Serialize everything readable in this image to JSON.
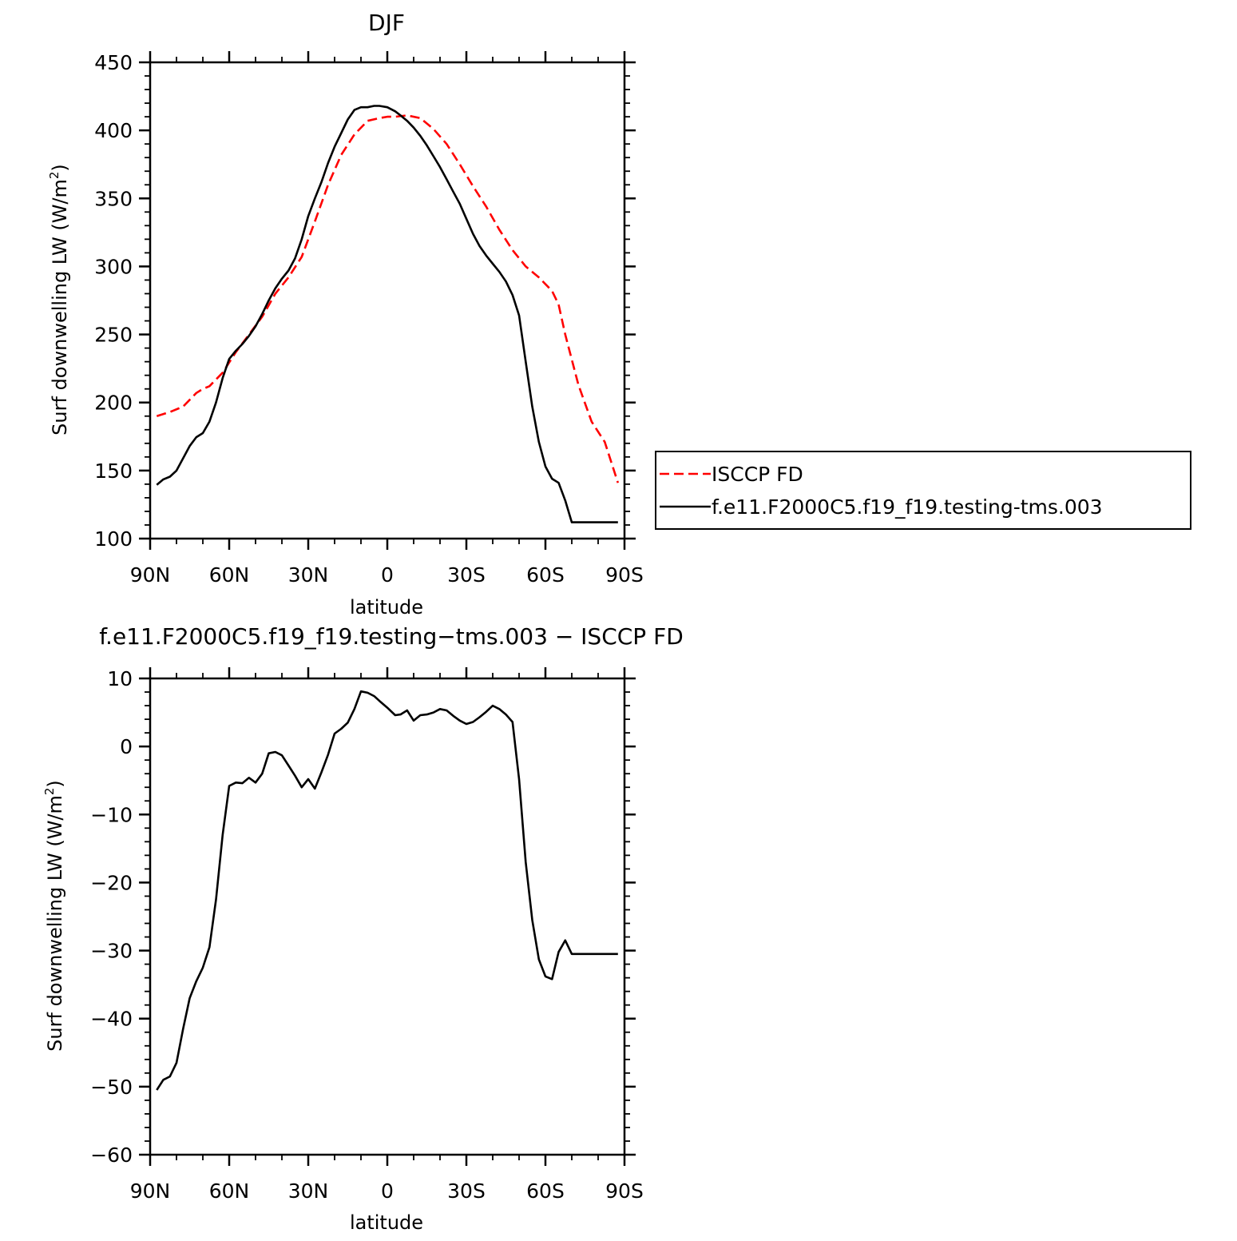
{
  "chart_data": [
    {
      "type": "line",
      "title": "DJF",
      "xlabel": "latitude",
      "ylabel_main": "Surf downwelling LW (W/m",
      "ylabel_sup": "2",
      "ylabel_close": ")",
      "xlim": [
        90,
        -90
      ],
      "ylim": [
        100,
        450
      ],
      "xticks": [
        {
          "value": 90,
          "label": "90N"
        },
        {
          "value": 60,
          "label": "60N"
        },
        {
          "value": 30,
          "label": "30N"
        },
        {
          "value": 0,
          "label": "0"
        },
        {
          "value": -30,
          "label": "30S"
        },
        {
          "value": -60,
          "label": "60S"
        },
        {
          "value": -90,
          "label": "90S"
        }
      ],
      "yticks": [
        100,
        150,
        200,
        250,
        300,
        350,
        400,
        450
      ],
      "legend": {
        "placement": "right"
      },
      "series": [
        {
          "name": "ISCCP FD",
          "color": "#ff0000",
          "dash": "dashed",
          "x": [
            87.5,
            82.5,
            77.5,
            72.5,
            70,
            67.5,
            62.5,
            57.5,
            52.5,
            47.5,
            42.5,
            37.5,
            32.5,
            27.5,
            22.5,
            17.5,
            12.5,
            7.5,
            3,
            0,
            -3,
            -7.5,
            -12.5,
            -17.5,
            -22.5,
            -27.5,
            -32.5,
            -37.5,
            -42.5,
            -47.5,
            -52.5,
            -57.5,
            -62.5,
            -65,
            -67.5,
            -72.5,
            -77.5,
            -82.5,
            -87.5
          ],
          "y": [
            190,
            193,
            197,
            207,
            210,
            212,
            222,
            237,
            250,
            263,
            280,
            292,
            307,
            333,
            360,
            382,
            397,
            407,
            409,
            410,
            410,
            411,
            409,
            401,
            390,
            375,
            359,
            344,
            327,
            312,
            300,
            292,
            282,
            272,
            250,
            213,
            186,
            171,
            141
          ]
        },
        {
          "name": "f.e11.F2000C5.f19_f19.testing-tms.003",
          "color": "#000000",
          "dash": "solid",
          "x": [
            87.5,
            85,
            82.5,
            80,
            77.5,
            75,
            72.5,
            70,
            67.5,
            65,
            62.5,
            60,
            57.5,
            55,
            52.5,
            50,
            47.5,
            45,
            42.5,
            40,
            37.5,
            35,
            32.5,
            30,
            27.5,
            25,
            22.5,
            20,
            17.5,
            15,
            12.5,
            10,
            7.5,
            5,
            3,
            0,
            -3,
            -5,
            -7.5,
            -10,
            -12.5,
            -15,
            -17.5,
            -20,
            -22.5,
            -25,
            -27.5,
            -30,
            -32.5,
            -35,
            -37.5,
            -40,
            -42.5,
            -45,
            -47.5,
            -50,
            -52.5,
            -55,
            -57.5,
            -60,
            -62.5,
            -65,
            -67.5,
            -70,
            -72.5,
            -75,
            -77.5,
            -80,
            -82.5,
            -85,
            -87.5
          ],
          "y": [
            139.5,
            143.5,
            145.5,
            150,
            159,
            168,
            174.5,
            177.5,
            186,
            200,
            218,
            232,
            238,
            243,
            249,
            256,
            265,
            275,
            284,
            291,
            297,
            306,
            320,
            337,
            350,
            362,
            376,
            388,
            398,
            408,
            415,
            417,
            417,
            418,
            418,
            417,
            414,
            411,
            407,
            402,
            396,
            389,
            381,
            373,
            364,
            355,
            346,
            335,
            324,
            315,
            308,
            302,
            296,
            289,
            279,
            264,
            230,
            197,
            171,
            153,
            144,
            141,
            128,
            112,
            112,
            112,
            112,
            112,
            112,
            112,
            112
          ]
        }
      ]
    },
    {
      "type": "line",
      "title": "f.e11.F2000C5.f19_f19.testing−tms.003 − ISCCP FD",
      "xlabel": "latitude",
      "ylabel_main": "Surf downwelling LW (W/m",
      "ylabel_sup": "2",
      "ylabel_close": ")",
      "xlim": [
        90,
        -90
      ],
      "ylim": [
        -60,
        10
      ],
      "xticks": [
        {
          "value": 90,
          "label": "90N"
        },
        {
          "value": 60,
          "label": "60N"
        },
        {
          "value": 30,
          "label": "30N"
        },
        {
          "value": 0,
          "label": "0"
        },
        {
          "value": -30,
          "label": "30S"
        },
        {
          "value": -60,
          "label": "60S"
        },
        {
          "value": -90,
          "label": "90S"
        }
      ],
      "yticks": [
        10,
        0,
        -10,
        -20,
        -30,
        -40,
        -50,
        -60
      ],
      "series": [
        {
          "color": "#000000",
          "dash": "solid",
          "x": [
            87.5,
            85,
            82.5,
            80,
            77.5,
            75,
            72.5,
            70,
            67.5,
            65,
            62.5,
            60,
            57.5,
            55,
            52.5,
            50,
            47.5,
            45,
            42.5,
            40,
            37.5,
            35,
            32.5,
            30,
            27.5,
            25,
            22.5,
            20,
            17.5,
            15,
            12.5,
            10,
            7.5,
            5,
            3,
            0,
            -3,
            -5,
            -7.5,
            -10,
            -12.5,
            -15,
            -17.5,
            -20,
            -22.5,
            -25,
            -27.5,
            -30,
            -32.5,
            -35,
            -37.5,
            -40,
            -42.5,
            -45,
            -47.5,
            -50,
            -52.5,
            -55,
            -57.5,
            -60,
            -62.5,
            -65,
            -67.5,
            -70,
            -72.5,
            -75,
            -77.5,
            -80,
            -82.5,
            -85,
            -87.5
          ],
          "y": [
            -50.5,
            -49,
            -48.5,
            -46.5,
            -41.5,
            -37,
            -34.5,
            -32.5,
            -29.5,
            -22.5,
            -13,
            -5.8,
            -5.3,
            -5.4,
            -4.6,
            -5.3,
            -4,
            -1,
            -0.8,
            -1.3,
            -2.8,
            -4.3,
            -6,
            -4.8,
            -6.2,
            -3.8,
            -1.2,
            1.9,
            2.6,
            3.5,
            5.5,
            8.1,
            7.9,
            7.4,
            6.7,
            5.7,
            4.6,
            4.7,
            5.3,
            3.8,
            4.6,
            4.7,
            5.0,
            5.5,
            5.3,
            4.5,
            3.8,
            3.3,
            3.6,
            4.3,
            5.1,
            6.0,
            5.5,
            4.7,
            3.6,
            -4.8,
            -17,
            -25.5,
            -31.3,
            -33.8,
            -34.2,
            -30.2,
            -28.5,
            -30.5,
            -30.5,
            -30.5,
            -30.5,
            -30.5,
            -30.5,
            -30.5,
            -30.5
          ]
        }
      ]
    }
  ]
}
